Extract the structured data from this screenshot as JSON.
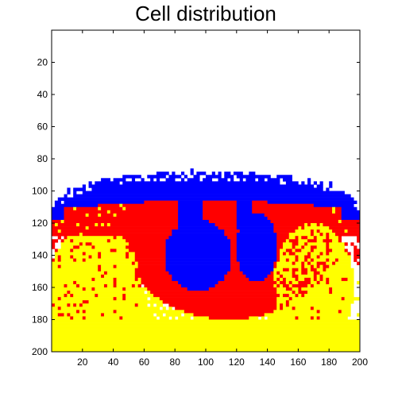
{
  "chart_data": {
    "type": "heatmap",
    "title": "Cell distribution",
    "xlabel": "",
    "ylabel": "",
    "xlim": [
      0,
      200
    ],
    "ylim": [
      0,
      200
    ],
    "y_reversed": true,
    "grid": false,
    "x_ticks": [
      20,
      40,
      60,
      80,
      100,
      120,
      140,
      160,
      180,
      200
    ],
    "y_ticks": [
      20,
      40,
      60,
      80,
      100,
      120,
      140,
      160,
      180,
      200
    ],
    "colors": {
      "background": "#ffffff",
      "outer_cells": "#0000ff",
      "middle_cells": "#ff0000",
      "inner_cells": "#ffff00",
      "axes": "#000000"
    },
    "regions": [
      {
        "color": "#ffff00",
        "description_rows": [
          180,
          200
        ],
        "description_cols": [
          0,
          200
        ]
      },
      {
        "color": "#0000ff",
        "description_rows": [
          88,
          150
        ],
        "description_cols": [
          3,
          195
        ]
      },
      {
        "color": "#ff0000",
        "description_rows": [
          100,
          178
        ],
        "description_cols": [
          0,
          195
        ]
      },
      {
        "color": "#0000ff",
        "description_rows": [
          118,
          165
        ],
        "description_cols": [
          72,
          150
        ]
      },
      {
        "color": "#ffff00",
        "description_rows": [
          125,
          200
        ],
        "description_cols": [
          5,
          190
        ]
      }
    ]
  }
}
